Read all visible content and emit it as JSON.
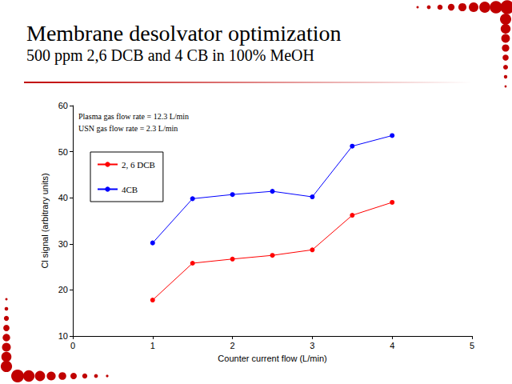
{
  "chart_data": {
    "type": "line",
    "title": "Membrane desolvator optimization",
    "subtitle": "500 ppm 2,6 DCB and 4 CB in 100% MeOH",
    "annotations": [
      "Plasma gas flow rate = 12.3 L/min",
      "USN gas flow rate = 2.3 L/min"
    ],
    "x_label": "Counter current flow (L/min)",
    "y_label": "Cl signal (arbitrary units)",
    "x": [
      1,
      1.5,
      2,
      2.5,
      3,
      3.5,
      4
    ],
    "series": [
      {
        "name": "2, 6 DCB",
        "color": "#ff0000",
        "marker": "circle",
        "line_style": "solid",
        "values": [
          17.8,
          25.8,
          26.7,
          27.5,
          28.7,
          36.2,
          39.0
        ]
      },
      {
        "name": "4CB",
        "color": "#0000ff",
        "marker": "circle",
        "line_style": "solid",
        "values": [
          30.2,
          39.8,
          40.7,
          41.4,
          40.2,
          51.2,
          53.5
        ]
      }
    ],
    "xlim": [
      0,
      5
    ],
    "xticks": [
      0,
      1,
      2,
      3,
      4,
      5
    ],
    "ylim": [
      10,
      60
    ],
    "yticks": [
      10,
      20,
      30,
      40,
      50,
      60
    ],
    "grid": false,
    "legend": "upper left"
  }
}
